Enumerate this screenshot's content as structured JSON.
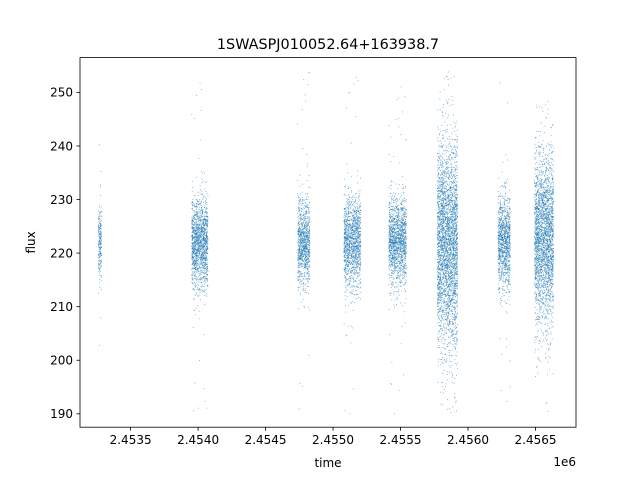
{
  "chart_data": {
    "type": "scatter",
    "title": "1SWASPJ010052.64+163938.7",
    "xlabel": "time",
    "ylabel": "flux",
    "x_offset_label": "1e6",
    "xlim": [
      2453125,
      2456800
    ],
    "ylim": [
      187.5,
      256.5
    ],
    "xticks": [
      2453500,
      2454000,
      2454500,
      2455000,
      2455500,
      2456000,
      2456500
    ],
    "xtick_labels": [
      "2.4535",
      "2.4540",
      "2.4545",
      "2.4550",
      "2.4555",
      "2.4560",
      "2.4565"
    ],
    "yticks": [
      190,
      200,
      210,
      220,
      230,
      240,
      250
    ],
    "ytick_labels": [
      "190",
      "200",
      "210",
      "220",
      "230",
      "240",
      "250"
    ],
    "marker_color": "#1f77b4",
    "legend": "none",
    "grid": false,
    "clusters": [
      {
        "center": 2453270,
        "width": 24,
        "mean": 222.5,
        "std": 3.6,
        "count": 220
      },
      {
        "center": 2454010,
        "width": 120,
        "mean": 222.0,
        "std": 4.2,
        "count": 1500
      },
      {
        "center": 2454780,
        "width": 90,
        "mean": 222.0,
        "std": 4.0,
        "count": 1000
      },
      {
        "center": 2455140,
        "width": 125,
        "mean": 222.0,
        "std": 4.2,
        "count": 1400
      },
      {
        "center": 2455475,
        "width": 130,
        "mean": 222.5,
        "std": 4.0,
        "count": 1500
      },
      {
        "center": 2455845,
        "width": 150,
        "mean": 222.0,
        "std": 9.5,
        "count": 3200
      },
      {
        "center": 2456265,
        "width": 90,
        "mean": 222.0,
        "std": 4.5,
        "count": 1100
      },
      {
        "center": 2456560,
        "width": 140,
        "mean": 222.5,
        "std": 8.0,
        "count": 2600
      }
    ]
  }
}
